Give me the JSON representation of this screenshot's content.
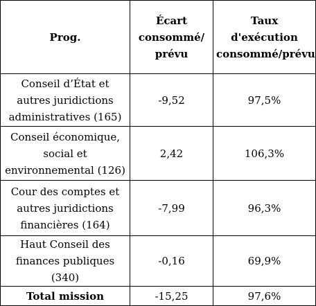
{
  "table": {
    "headers": [
      "Prog.",
      "Écart consommé/ prévu",
      "Taux d'exécution consommé/prévu"
    ],
    "rows": [
      {
        "prog": "Conseil d’État et autres juridictions administratives (165)",
        "ecart": "-9,52",
        "taux": "97,5%"
      },
      {
        "prog": "Conseil économique, social et environnemental (126)",
        "ecart": "2,42",
        "taux": "106,3%"
      },
      {
        "prog": "Cour des comptes et autres juridictions financières (164)",
        "ecart": "-7,99",
        "taux": "96,3%"
      },
      {
        "prog": "Haut Conseil des finances publiques (340)",
        "ecart": "-0,16",
        "taux": "69,9%"
      }
    ],
    "total": {
      "label": "Total mission",
      "ecart": "-15,25",
      "taux": "97,6%"
    }
  }
}
